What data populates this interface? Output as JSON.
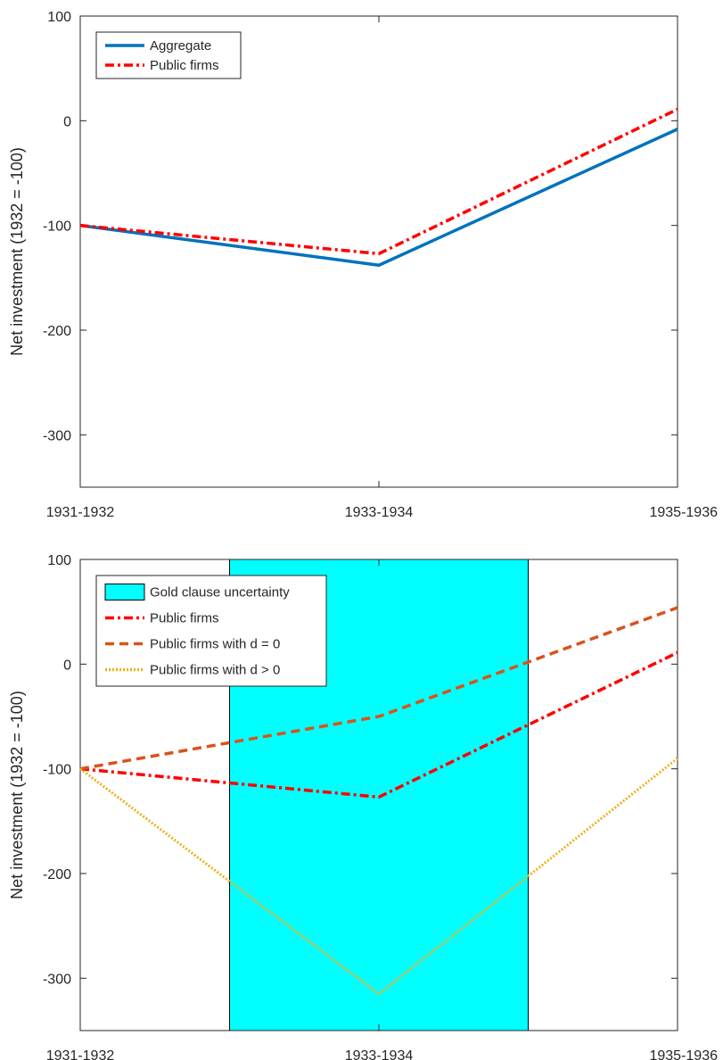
{
  "chart_data": [
    {
      "type": "line",
      "title": "",
      "xlabel": "",
      "ylabel": "Net investment (1932 = -100)",
      "categories": [
        "1931-1932",
        "1933-1934",
        "1935-1936"
      ],
      "ylim": [
        -350,
        100
      ],
      "yticks": [
        100,
        0,
        -100,
        -200,
        -300
      ],
      "grid": false,
      "legend_position": "top-left",
      "series": [
        {
          "name": "Aggregate",
          "values": [
            -100,
            -138,
            -8
          ],
          "color": "#0072BD",
          "style": "solid"
        },
        {
          "name": "Public firms",
          "values": [
            -100,
            -127,
            11
          ],
          "color": "#FF0000",
          "style": "dash-dot"
        }
      ]
    },
    {
      "type": "line",
      "title": "",
      "xlabel": "",
      "ylabel": "Net investment (1932 = -100)",
      "categories": [
        "1931-1932",
        "1933-1934",
        "1935-1936"
      ],
      "ylim": [
        -350,
        100
      ],
      "yticks": [
        100,
        0,
        -100,
        -200,
        -300
      ],
      "grid": false,
      "legend_position": "top-left",
      "shaded_region": {
        "name": "Gold clause uncertainty",
        "x_start": 0.5,
        "x_end": 1.5,
        "color": "#00FFFF"
      },
      "series": [
        {
          "name": "Public firms",
          "values": [
            -100,
            -127,
            11
          ],
          "color": "#FF0000",
          "style": "dash-dot"
        },
        {
          "name": "Public firms with d = 0",
          "values": [
            -100,
            -50,
            54
          ],
          "color": "#D95319",
          "style": "dashed"
        },
        {
          "name": "Public firms with d > 0",
          "values": [
            -100,
            -315,
            -90
          ],
          "color": "#EDB120",
          "style": "dotted"
        }
      ]
    }
  ]
}
